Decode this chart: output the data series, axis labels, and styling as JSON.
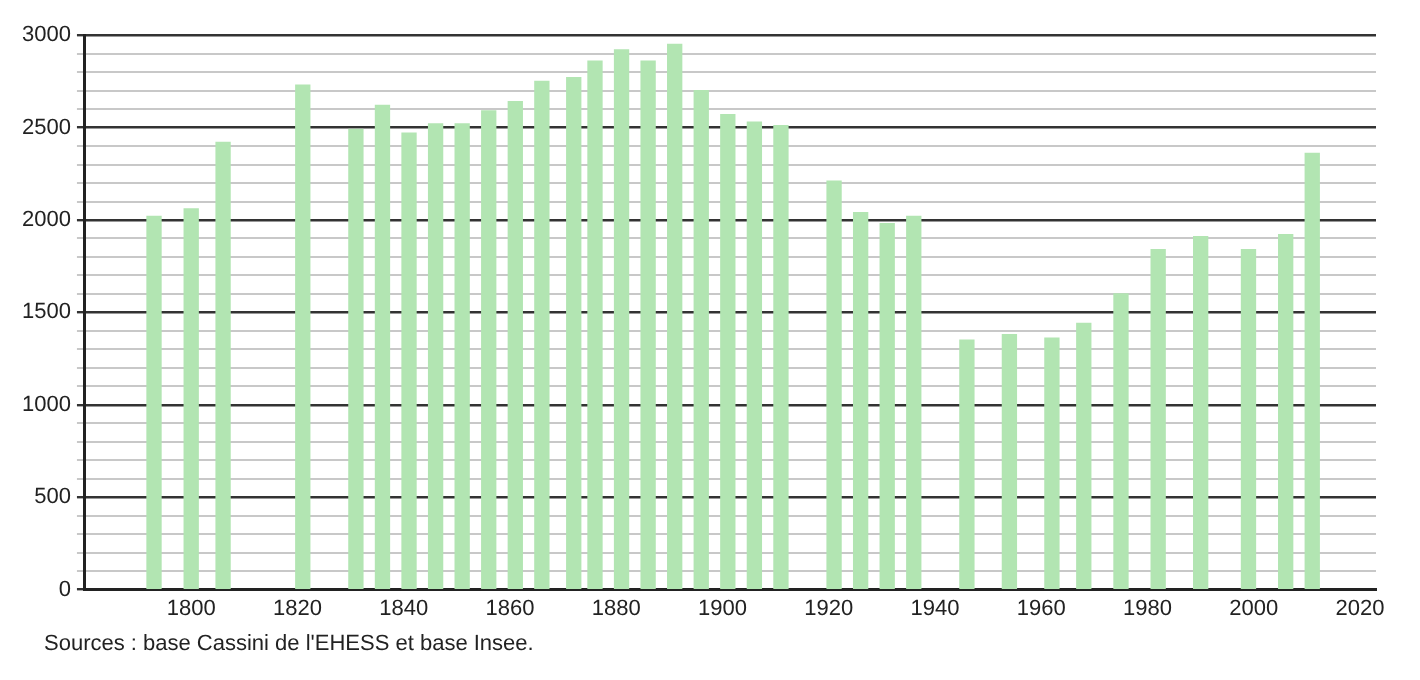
{
  "chart_data": {
    "type": "bar",
    "x": [
      1793,
      1800,
      1806,
      1821,
      1831,
      1836,
      1841,
      1846,
      1851,
      1856,
      1861,
      1866,
      1872,
      1876,
      1881,
      1886,
      1891,
      1896,
      1901,
      1906,
      1911,
      1921,
      1926,
      1931,
      1936,
      1946,
      1954,
      1962,
      1968,
      1975,
      1982,
      1990,
      1999,
      2006,
      2011
    ],
    "values": [
      2020,
      2060,
      2420,
      2730,
      2490,
      2620,
      2470,
      2520,
      2520,
      2590,
      2640,
      2750,
      2770,
      2860,
      2920,
      2860,
      2950,
      2700,
      2570,
      2530,
      2510,
      2210,
      2040,
      1980,
      2020,
      1350,
      1380,
      1360,
      1440,
      1600,
      1840,
      1910,
      1840,
      1920,
      2360
    ],
    "color": "#b2e5b2",
    "xlim": [
      1780,
      2023
    ],
    "xticks": [
      1800,
      1820,
      1840,
      1860,
      1880,
      1900,
      1920,
      1940,
      1960,
      1980,
      2000,
      2020
    ],
    "ylim": [
      0,
      3000
    ],
    "yticks": [
      0,
      {
        "value": 100,
        "label": null
      },
      {
        "value": 200,
        "label": null
      },
      {
        "value": 300,
        "label": null
      },
      {
        "value": 400,
        "label": null
      },
      500,
      {
        "value": 600,
        "label": null
      },
      {
        "value": 700,
        "label": null
      },
      {
        "value": 800,
        "label": null
      },
      {
        "value": 900,
        "label": null
      },
      1000,
      {
        "value": 1100,
        "label": null
      },
      {
        "value": 1200,
        "label": null
      },
      {
        "value": 1300,
        "label": null
      },
      {
        "value": 1400,
        "label": null
      },
      1500,
      {
        "value": 1600,
        "label": null
      },
      {
        "value": 1700,
        "label": null
      },
      {
        "value": 1800,
        "label": null
      },
      {
        "value": 1900,
        "label": null
      },
      2000,
      {
        "value": 2100,
        "label": null
      },
      {
        "value": 2200,
        "label": null
      },
      {
        "value": 2300,
        "label": null
      },
      {
        "value": 2400,
        "label": null
      },
      2500,
      {
        "value": 2600,
        "label": null
      },
      {
        "value": 2700,
        "label": null
      },
      {
        "value": 2800,
        "label": null
      },
      {
        "value": 2900,
        "label": null
      },
      3000
    ],
    "grid": "y",
    "legend": false,
    "annotations": [
      "Sources : base Cassini de l'EHESS et base Insee."
    ]
  }
}
